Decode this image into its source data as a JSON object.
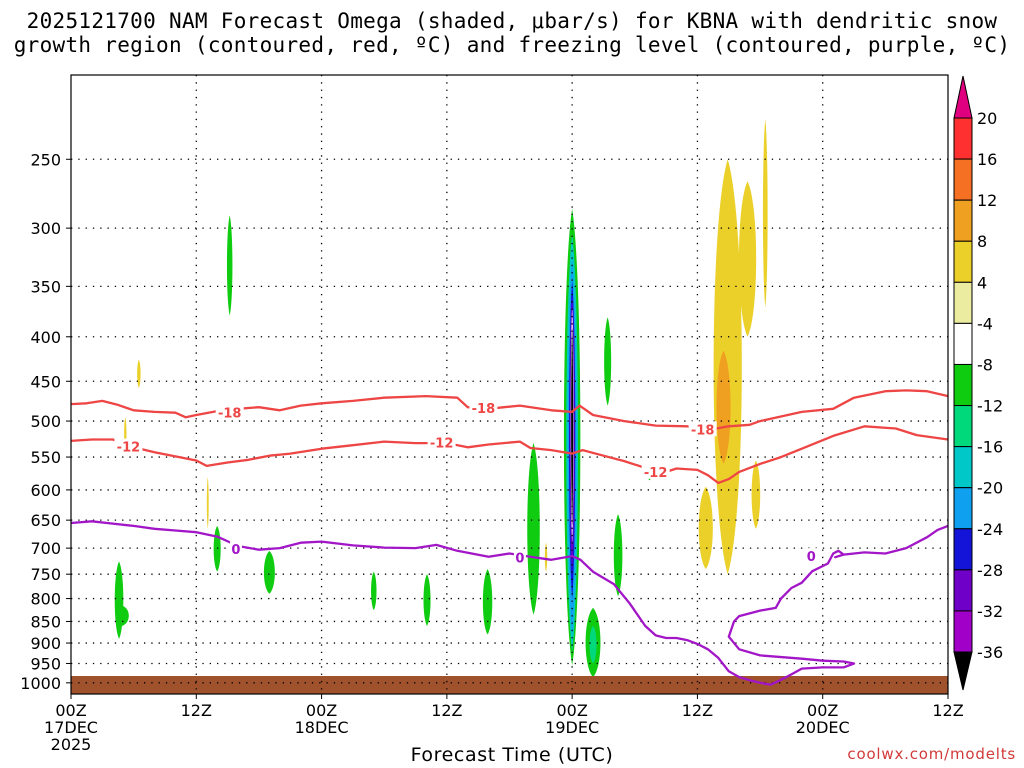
{
  "title_line1": "2025121700 NAM Forecast Omega (shaded, μbar/s) for KBNA with dendritic snow",
  "title_line2": "growth region (contoured, red, ºC) and freezing level (contoured, purple, ºC)",
  "x_axis_label": "Forecast Time (UTC)",
  "credit": "coolwx.com/modelts",
  "chart_data": {
    "type": "time-height cross section",
    "x_ticks": [
      {
        "h": 0,
        "label": [
          "00Z",
          "17DEC",
          "2025"
        ]
      },
      {
        "h": 12,
        "label": [
          "12Z"
        ]
      },
      {
        "h": 24,
        "label": [
          "00Z",
          "18DEC"
        ]
      },
      {
        "h": 36,
        "label": [
          "12Z"
        ]
      },
      {
        "h": 48,
        "label": [
          "00Z",
          "19DEC"
        ]
      },
      {
        "h": 60,
        "label": [
          "12Z"
        ]
      },
      {
        "h": 72,
        "label": [
          "00Z",
          "20DEC"
        ]
      },
      {
        "h": 84,
        "label": [
          "12Z"
        ]
      }
    ],
    "xlim": [
      0,
      84
    ],
    "y_ticks": [
      250,
      300,
      350,
      400,
      450,
      500,
      550,
      600,
      650,
      700,
      750,
      800,
      850,
      900,
      950,
      1000
    ],
    "ylim": [
      200,
      1030
    ],
    "colorbar": {
      "labels": [
        "20",
        "16",
        "12",
        "8",
        "4",
        "-4",
        "-8",
        "-12",
        "-16",
        "-20",
        "-24",
        "-28",
        "-32",
        "-36"
      ],
      "colors": [
        "#e0007f",
        "#ff3030",
        "#f57023",
        "#f0a020",
        "#ebd02a",
        "#ececa0",
        "#ffffff",
        "#10cc10",
        "#00d87c",
        "#00c8c8",
        "#10a0f0",
        "#1414d8",
        "#6e00c8",
        "#a000c8",
        "#b4b4b4",
        "#000000"
      ]
    },
    "contours": [
      {
        "name": "dendritic -18C",
        "color": "#ee4545",
        "label": "-18",
        "points": [
          [
            0,
            478
          ],
          [
            1.5,
            477
          ],
          [
            3,
            474
          ],
          [
            4.5,
            479
          ],
          [
            6,
            486
          ],
          [
            8,
            488
          ],
          [
            10,
            489
          ],
          [
            11,
            495
          ],
          [
            12,
            492
          ],
          [
            14,
            487
          ],
          [
            16,
            484
          ],
          [
            18,
            482
          ],
          [
            20,
            486
          ],
          [
            22,
            480
          ],
          [
            24,
            477
          ],
          [
            27,
            474
          ],
          [
            30,
            470
          ],
          [
            34,
            468
          ],
          [
            37,
            470
          ],
          [
            38,
            482
          ],
          [
            40,
            484
          ],
          [
            43,
            480
          ],
          [
            46,
            486
          ],
          [
            48,
            488
          ],
          [
            48.7,
            480
          ],
          [
            50,
            492
          ],
          [
            53,
            500
          ],
          [
            56,
            506
          ],
          [
            59,
            507
          ],
          [
            61,
            512
          ],
          [
            63,
            507
          ],
          [
            65,
            505
          ],
          [
            66,
            500
          ],
          [
            70,
            488
          ],
          [
            73,
            484
          ],
          [
            75,
            470
          ],
          [
            78,
            462
          ],
          [
            80,
            461
          ],
          [
            82,
            462
          ],
          [
            84,
            468
          ]
        ]
      },
      {
        "name": "dendritic -12C",
        "color": "#ee4545",
        "label": "-12",
        "points": [
          [
            0,
            527
          ],
          [
            2,
            525
          ],
          [
            4,
            525
          ],
          [
            6,
            536
          ],
          [
            8,
            543
          ],
          [
            10,
            549
          ],
          [
            12,
            555
          ],
          [
            13,
            563
          ],
          [
            15,
            558
          ],
          [
            17,
            554
          ],
          [
            19,
            548
          ],
          [
            21,
            545
          ],
          [
            24,
            538
          ],
          [
            27,
            533
          ],
          [
            30,
            528
          ],
          [
            33,
            530
          ],
          [
            36,
            530
          ],
          [
            38,
            536
          ],
          [
            40,
            532
          ],
          [
            43,
            528
          ],
          [
            44,
            537
          ],
          [
            46,
            540
          ],
          [
            48,
            545
          ],
          [
            49,
            540
          ],
          [
            51,
            548
          ],
          [
            53,
            556
          ],
          [
            55,
            566
          ],
          [
            57,
            572
          ],
          [
            58,
            567
          ],
          [
            60,
            569
          ],
          [
            61,
            577
          ],
          [
            62,
            589
          ],
          [
            63,
            583
          ],
          [
            64,
            572
          ],
          [
            66,
            560
          ],
          [
            68,
            550
          ],
          [
            70,
            538
          ],
          [
            73,
            520
          ],
          [
            76,
            507
          ],
          [
            79,
            510
          ],
          [
            81,
            519
          ],
          [
            84,
            525
          ]
        ]
      },
      {
        "name": "freezing level 0C",
        "color": "#a216c8",
        "label": "0",
        "points": [
          [
            0,
            655
          ],
          [
            2,
            652
          ],
          [
            4,
            656
          ],
          [
            6,
            660
          ],
          [
            8,
            665
          ],
          [
            10,
            668
          ],
          [
            12,
            671
          ],
          [
            14,
            679
          ],
          [
            16,
            696
          ],
          [
            18,
            703
          ],
          [
            20,
            700
          ],
          [
            22,
            690
          ],
          [
            24,
            688
          ],
          [
            27,
            695
          ],
          [
            30,
            699
          ],
          [
            33,
            700
          ],
          [
            35,
            694
          ],
          [
            37,
            705
          ],
          [
            40,
            716
          ],
          [
            42,
            710
          ],
          [
            44,
            716
          ],
          [
            46,
            722
          ],
          [
            48,
            715
          ],
          [
            48.8,
            722
          ],
          [
            50,
            745
          ],
          [
            52,
            770
          ],
          [
            53.5,
            810
          ],
          [
            55,
            860
          ],
          [
            56,
            882
          ],
          [
            57,
            888
          ],
          [
            58,
            888
          ],
          [
            59,
            893
          ],
          [
            60,
            902
          ],
          [
            61,
            915
          ],
          [
            62,
            936
          ],
          [
            63,
            970
          ],
          [
            64,
            985
          ],
          [
            65,
            993
          ],
          [
            66,
            1000
          ],
          [
            67,
            1005
          ],
          [
            68,
            992
          ],
          [
            69,
            978
          ],
          [
            70,
            963
          ],
          [
            72,
            960
          ],
          [
            74,
            960
          ],
          [
            75,
            950
          ],
          [
            74,
            945
          ],
          [
            72,
            943
          ],
          [
            70,
            938
          ],
          [
            66,
            930
          ],
          [
            64,
            915
          ],
          [
            63,
            885
          ],
          [
            63.5,
            850
          ],
          [
            64,
            838
          ],
          [
            66,
            826
          ],
          [
            67.5,
            820
          ],
          [
            68,
            800
          ],
          [
            69,
            778
          ],
          [
            70,
            767
          ],
          [
            71,
            744
          ],
          [
            72.5,
            729
          ],
          [
            73,
            710
          ],
          [
            73.5,
            705
          ],
          [
            74,
            712
          ],
          [
            73.2,
            717
          ],
          [
            74,
            712
          ],
          [
            76,
            708
          ],
          [
            78,
            710
          ],
          [
            80,
            700
          ],
          [
            82,
            680
          ],
          [
            83,
            667
          ],
          [
            84,
            660
          ]
        ]
      }
    ],
    "contour_labels": [
      {
        "text": "-18",
        "h": 15.2,
        "p": 489,
        "color": "#ee4545"
      },
      {
        "text": "-18",
        "h": 39.5,
        "p": 483,
        "color": "#ee4545"
      },
      {
        "text": "-18",
        "h": 60.5,
        "p": 511,
        "color": "#ee4545"
      },
      {
        "text": "-12",
        "h": 5.5,
        "p": 535,
        "color": "#ee4545"
      },
      {
        "text": "-12",
        "h": 35.5,
        "p": 529,
        "color": "#ee4545"
      },
      {
        "text": "-12",
        "h": 56,
        "p": 572,
        "color": "#ee4545"
      },
      {
        "text": "0",
        "h": 15.8,
        "p": 702,
        "color": "#a216c8"
      },
      {
        "text": "0",
        "h": 43,
        "p": 718,
        "color": "#a216c8"
      },
      {
        "text": "0",
        "h": 70.9,
        "p": 715,
        "color": "#a216c8"
      }
    ],
    "shaded_regions": [
      {
        "h": 15.2,
        "top": 290,
        "bottom": 378,
        "hw": 0.35,
        "color": "#10cc10"
      },
      {
        "h": 6.5,
        "top": 425,
        "bottom": 458,
        "hw": 0.22,
        "color": "#ebd02a"
      },
      {
        "h": 5.2,
        "top": 495,
        "bottom": 540,
        "hw": 0.15,
        "color": "#ebd02a"
      },
      {
        "h": 13.1,
        "top": 580,
        "bottom": 665,
        "hw": 0.12,
        "color": "#ebd02a"
      },
      {
        "h": 4.6,
        "top": 725,
        "bottom": 890,
        "hw": 0.55,
        "color": "#10cc10"
      },
      {
        "h": 4.9,
        "top": 815,
        "bottom": 860,
        "hw": 0.85,
        "color": "#10cc10"
      },
      {
        "h": 14.0,
        "top": 660,
        "bottom": 745,
        "hw": 0.45,
        "color": "#10cc10"
      },
      {
        "h": 19.0,
        "top": 705,
        "bottom": 790,
        "hw": 0.7,
        "color": "#10cc10"
      },
      {
        "h": 29.0,
        "top": 745,
        "bottom": 825,
        "hw": 0.35,
        "color": "#10cc10"
      },
      {
        "h": 34.1,
        "top": 750,
        "bottom": 860,
        "hw": 0.45,
        "color": "#10cc10"
      },
      {
        "h": 39.9,
        "top": 740,
        "bottom": 880,
        "hw": 0.6,
        "color": "#10cc10"
      },
      {
        "h": 44.3,
        "top": 530,
        "bottom": 835,
        "hw": 0.8,
        "color": "#10cc10"
      },
      {
        "h": 45.5,
        "top": 690,
        "bottom": 745,
        "hw": 0.15,
        "color": "#ebd02a"
      },
      {
        "h": 48.0,
        "top": 285,
        "bottom": 955,
        "hw": 1.05,
        "color": "#10cc10"
      },
      {
        "h": 48.0,
        "top": 305,
        "bottom": 920,
        "hw": 0.75,
        "color": "#00c8c8"
      },
      {
        "h": 48.0,
        "top": 325,
        "bottom": 880,
        "hw": 0.55,
        "color": "#10a0f0"
      },
      {
        "h": 48.0,
        "top": 345,
        "bottom": 800,
        "hw": 0.4,
        "color": "#1414d8"
      },
      {
        "h": 48.0,
        "top": 360,
        "bottom": 740,
        "hw": 0.3,
        "color": "#6e00c8"
      },
      {
        "h": 48.0,
        "top": 370,
        "bottom": 690,
        "hw": 0.18,
        "color": "#ffffff"
      },
      {
        "h": 48.0,
        "top": 390,
        "bottom": 660,
        "hw": 0.13,
        "color": "#000000"
      },
      {
        "h": 50.0,
        "top": 820,
        "bottom": 985,
        "hw": 0.95,
        "color": "#10cc10"
      },
      {
        "h": 50.0,
        "top": 860,
        "bottom": 950,
        "hw": 0.45,
        "color": "#00d87c"
      },
      {
        "h": 51.4,
        "top": 380,
        "bottom": 480,
        "hw": 0.45,
        "color": "#10cc10"
      },
      {
        "h": 52.4,
        "top": 640,
        "bottom": 795,
        "hw": 0.55,
        "color": "#10cc10"
      },
      {
        "h": 55.4,
        "top": 560,
        "bottom": 585,
        "hw": 0.3,
        "color": "#10cc10"
      },
      {
        "h": 60.8,
        "top": 595,
        "bottom": 740,
        "hw": 0.9,
        "color": "#ebd02a"
      },
      {
        "h": 62.9,
        "top": 250,
        "bottom": 750,
        "hw": 1.8,
        "color": "#ebd02a"
      },
      {
        "h": 64.8,
        "top": 265,
        "bottom": 400,
        "hw": 1.1,
        "color": "#ebd02a"
      },
      {
        "h": 66.5,
        "top": 225,
        "bottom": 370,
        "hw": 0.3,
        "color": "#ebd02a"
      },
      {
        "h": 65.6,
        "top": 555,
        "bottom": 665,
        "hw": 0.55,
        "color": "#ebd02a"
      },
      {
        "h": 62.5,
        "top": 415,
        "bottom": 560,
        "hw": 0.9,
        "color": "#f0a020"
      }
    ]
  }
}
